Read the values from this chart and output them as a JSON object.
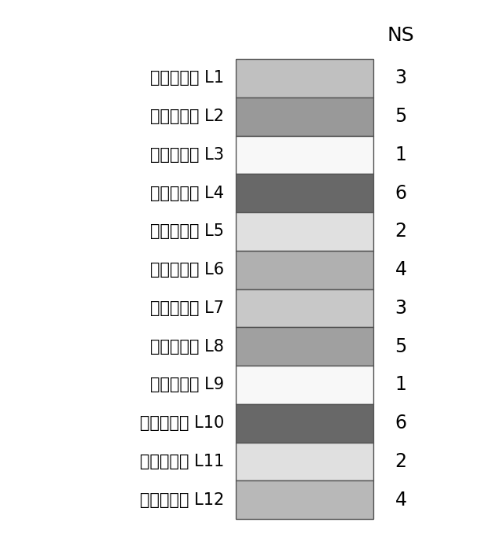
{
  "rows": [
    {
      "label": "画素ライン L1",
      "ns": "3",
      "color": "#c0c0c0"
    },
    {
      "label": "画素ライン L2",
      "ns": "5",
      "color": "#999999"
    },
    {
      "label": "画素ライン L3",
      "ns": "1",
      "color": "#f8f8f8"
    },
    {
      "label": "画素ライン L4",
      "ns": "6",
      "color": "#686868"
    },
    {
      "label": "画素ライン L5",
      "ns": "2",
      "color": "#e0e0e0"
    },
    {
      "label": "画素ライン L6",
      "ns": "4",
      "color": "#b0b0b0"
    },
    {
      "label": "画素ライン L7",
      "ns": "3",
      "color": "#c8c8c8"
    },
    {
      "label": "画素ライン L8",
      "ns": "5",
      "color": "#a0a0a0"
    },
    {
      "label": "画素ライン L9",
      "ns": "1",
      "color": "#f8f8f8"
    },
    {
      "label": "画素ライン L10",
      "ns": "6",
      "color": "#686868"
    },
    {
      "label": "画素ライン L11",
      "ns": "2",
      "color": "#e0e0e0"
    },
    {
      "label": "画素ライン L12",
      "ns": "4",
      "color": "#b8b8b8"
    }
  ],
  "ns_header": "NS",
  "background_color": "#ffffff",
  "border_color": "#555555",
  "border_linewidth": 1.0,
  "label_fontsize": 15,
  "ns_fontsize": 17,
  "header_fontsize": 18
}
